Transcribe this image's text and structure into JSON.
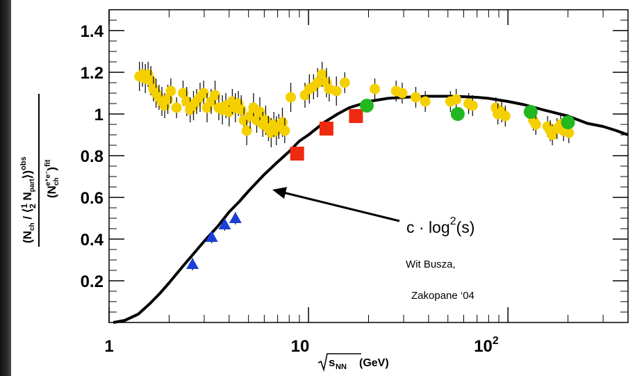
{
  "chart_data": {
    "type": "scatter",
    "x_scale": "log",
    "xlim": [
      1,
      400
    ],
    "ylim": [
      0,
      1.5
    ],
    "grid": false,
    "legend": "none",
    "xlabel_root": "s",
    "xlabel_sub": "NN",
    "xlabel_unit": " (GeV)",
    "x_ticks": [
      {
        "value": 1,
        "label": "1"
      },
      {
        "value": 10,
        "label": "10"
      },
      {
        "value": 100,
        "label": "10",
        "sup": "2"
      }
    ],
    "y_ticks": [
      {
        "value": 0.2,
        "label": "0.2"
      },
      {
        "value": 0.4,
        "label": "0.4"
      },
      {
        "value": 0.6,
        "label": "0.6"
      },
      {
        "value": 0.8,
        "label": "0.8"
      },
      {
        "value": 1.0,
        "label": "1"
      },
      {
        "value": 1.2,
        "label": "1.2"
      },
      {
        "value": 1.4,
        "label": "1.4"
      }
    ],
    "ylabel_numerator": "(N",
    "ylabel_num_sub": "ch",
    "ylabel_num_mid": " / ⟨",
    "ylabel_frac_num": "1",
    "ylabel_frac_den": "2",
    "ylabel_npart": " N",
    "ylabel_npart_sub": "part",
    "ylabel_num_close": "⟩)",
    "ylabel_num_sup": "obs",
    "ylabel_denominator": "(N",
    "ylabel_den_sub": "ch",
    "ylabel_den_sup": "e⁺e⁻",
    "ylabel_den_close": ")",
    "ylabel_den_sup2": "fit",
    "series": [
      {
        "marker": "circle",
        "color": "#f5d000",
        "points": [
          [
            1.42,
            1.18,
            0.07
          ],
          [
            1.47,
            1.19,
            0.06
          ],
          [
            1.52,
            1.17,
            0.07
          ],
          [
            1.57,
            1.19,
            0.06
          ],
          [
            1.62,
            1.16,
            0.07
          ],
          [
            1.67,
            1.12,
            0.06
          ],
          [
            1.72,
            1.1,
            0.07
          ],
          [
            1.78,
            1.08,
            0.06
          ],
          [
            1.84,
            1.06,
            0.07
          ],
          [
            1.9,
            1.04,
            0.06
          ],
          [
            1.97,
            1.07,
            0.07
          ],
          [
            2.04,
            1.11,
            0.06
          ],
          [
            2.18,
            1.03,
            0.05
          ],
          [
            2.35,
            1.1,
            0.06
          ],
          [
            2.45,
            1.06,
            0.07
          ],
          [
            2.55,
            1.02,
            0.06
          ],
          [
            2.65,
            1.04,
            0.07
          ],
          [
            2.75,
            1.06,
            0.06
          ],
          [
            2.86,
            1.08,
            0.07
          ],
          [
            2.98,
            1.1,
            0.06
          ],
          [
            3.1,
            1.03,
            0.07
          ],
          [
            3.25,
            1.06,
            0.06
          ],
          [
            3.4,
            1.09,
            0.07
          ],
          [
            3.55,
            1.03,
            0.06
          ],
          [
            3.7,
            1.02,
            0.07
          ],
          [
            3.85,
            1.04,
            0.06
          ],
          [
            4.0,
            1.01,
            0.07
          ],
          [
            4.15,
            1.06,
            0.06
          ],
          [
            4.3,
            1.03,
            0.07
          ],
          [
            4.45,
            1.05,
            0.06
          ],
          [
            4.6,
            1.02,
            0.07
          ],
          [
            4.75,
            0.97,
            0.06
          ],
          [
            4.9,
            0.92,
            0.07
          ],
          [
            5.1,
            0.99,
            0.06
          ],
          [
            5.3,
            1.03,
            0.07
          ],
          [
            5.5,
            0.97,
            0.06
          ],
          [
            5.7,
            1.01,
            0.07
          ],
          [
            5.9,
            0.95,
            0.06
          ],
          [
            6.1,
            0.97,
            0.07
          ],
          [
            6.3,
            0.93,
            0.06
          ],
          [
            6.5,
            0.91,
            0.07
          ],
          [
            6.7,
            0.95,
            0.06
          ],
          [
            6.9,
            0.92,
            0.07
          ],
          [
            7.1,
            0.94,
            0.06
          ],
          [
            7.4,
            0.96,
            0.07
          ],
          [
            7.6,
            0.92,
            0.06
          ],
          [
            8.15,
            1.08,
            0.07
          ],
          [
            9.6,
            1.09,
            0.06
          ],
          [
            10.1,
            1.12,
            0.07
          ],
          [
            10.6,
            1.13,
            0.06
          ],
          [
            11.1,
            1.15,
            0.07
          ],
          [
            11.7,
            1.19,
            0.06
          ],
          [
            12.3,
            1.15,
            0.07
          ],
          [
            12.7,
            1.12,
            0.06
          ],
          [
            13.8,
            1.11,
            0.07
          ],
          [
            15.2,
            1.15,
            0.05
          ],
          [
            21.5,
            1.12,
            0.05
          ],
          [
            27.5,
            1.11,
            0.05
          ],
          [
            29.5,
            1.1,
            0.05
          ],
          [
            34.5,
            1.08,
            0.05
          ],
          [
            38.5,
            1.06,
            0.05
          ],
          [
            51.5,
            1.06,
            0.05
          ],
          [
            55.0,
            1.07,
            0.05
          ],
          [
            63.5,
            1.05,
            0.05
          ],
          [
            66.5,
            1.04,
            0.05
          ],
          [
            87.0,
            1.03,
            0.05
          ],
          [
            89.0,
            1.0,
            0.05
          ],
          [
            93.0,
            1.01,
            0.05
          ],
          [
            97.0,
            0.99,
            0.05
          ],
          [
            134.0,
            0.97,
            0.05
          ],
          [
            138.0,
            0.95,
            0.05
          ],
          [
            158.0,
            0.94,
            0.05
          ],
          [
            163.0,
            0.92,
            0.05
          ],
          [
            167.0,
            0.9,
            0.05
          ],
          [
            176.0,
            0.93,
            0.05
          ],
          [
            184.0,
            0.95,
            0.05
          ],
          [
            190.0,
            0.92,
            0.05
          ],
          [
            202.0,
            0.91,
            0.05
          ]
        ]
      },
      {
        "marker": "triangle",
        "color": "#1a3fd6",
        "points": [
          [
            2.62,
            0.28,
            0.03
          ],
          [
            3.27,
            0.41,
            0.03
          ],
          [
            3.8,
            0.47,
            0.03
          ],
          [
            4.3,
            0.5,
            0.03
          ]
        ]
      },
      {
        "marker": "square",
        "color": "#ee2a10",
        "points": [
          [
            8.77,
            0.81,
            0.03
          ],
          [
            12.3,
            0.93,
            0.03
          ],
          [
            17.3,
            0.99,
            0.03
          ]
        ]
      },
      {
        "marker": "circle-big",
        "color": "#22b820",
        "points": [
          [
            19.6,
            1.04,
            0.03
          ],
          [
            56.0,
            1.0,
            0.03
          ],
          [
            130.0,
            1.01,
            0.03
          ],
          [
            200.0,
            0.96,
            0.03
          ]
        ]
      }
    ],
    "curve": {
      "x": [
        1.05,
        1.2,
        1.4,
        1.6,
        1.8,
        2,
        2.3,
        2.6,
        3,
        3.5,
        4,
        4.5,
        5,
        6,
        7,
        8,
        9,
        10,
        12,
        14,
        16,
        18,
        20,
        25,
        30,
        35,
        40,
        50,
        60,
        70,
        80,
        100,
        120,
        150,
        200,
        250,
        300,
        350,
        400
      ],
      "y": [
        0.0,
        0.01,
        0.04,
        0.09,
        0.14,
        0.19,
        0.26,
        0.32,
        0.39,
        0.46,
        0.53,
        0.58,
        0.63,
        0.71,
        0.77,
        0.82,
        0.87,
        0.9,
        0.96,
        1.0,
        1.03,
        1.045,
        1.06,
        1.075,
        1.08,
        1.083,
        1.085,
        1.085,
        1.083,
        1.08,
        1.075,
        1.06,
        1.045,
        1.02,
        0.99,
        0.955,
        0.94,
        0.92,
        0.9
      ]
    },
    "annotation_formula": "c · log",
    "annotation_formula_sup": "2",
    "annotation_formula_tail": "(s)",
    "annotation_author": "Wit Busza,",
    "annotation_venue": "Zakopane ‘04"
  }
}
